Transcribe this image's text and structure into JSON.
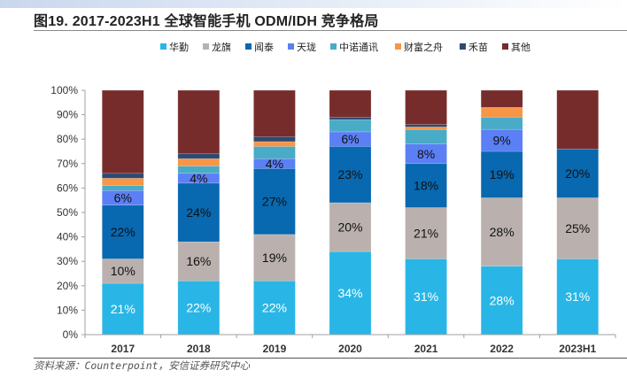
{
  "title": "图19. 2017-2023H1 全球智能手机 ODM/IDH 竞争格局",
  "source": "资料来源：Counterpoint，安信证券研究中心",
  "chart_data": {
    "type": "bar",
    "stacked": true,
    "title": "图19. 2017-2023H1 全球智能手机 ODM/IDH 竞争格局",
    "xlabel": "",
    "ylabel": "",
    "ylim": [
      0,
      100
    ],
    "yticks": [
      "0%",
      "10%",
      "20%",
      "30%",
      "40%",
      "50%",
      "60%",
      "70%",
      "80%",
      "90%",
      "100%"
    ],
    "categories": [
      "2017",
      "2018",
      "2019",
      "2020",
      "2021",
      "2022",
      "2023H1"
    ],
    "legend_position": "top",
    "series": [
      {
        "name": "华勤",
        "color": "#29b6e6",
        "values": [
          21,
          22,
          22,
          34,
          31,
          28,
          31
        ],
        "labels": [
          "21%",
          "22%",
          "22%",
          "34%",
          "31%",
          "28%",
          "31%"
        ],
        "label_color": "#ffffff"
      },
      {
        "name": "龙旗",
        "color": "#bab1ae",
        "values": [
          10,
          16,
          19,
          20,
          21,
          28,
          25
        ],
        "labels": [
          "10%",
          "16%",
          "19%",
          "20%",
          "21%",
          "28%",
          "25%"
        ],
        "label_color": "#111111"
      },
      {
        "name": "闻泰",
        "color": "#0868b0",
        "values": [
          22,
          24,
          27,
          23,
          18,
          19,
          20
        ],
        "labels": [
          "22%",
          "24%",
          "27%",
          "23%",
          "18%",
          "19%",
          "20%"
        ],
        "label_color": "#111111"
      },
      {
        "name": "天珑",
        "color": "#5b7ff5",
        "values": [
          6,
          4,
          4,
          6,
          8,
          9,
          0
        ],
        "labels": [
          "6%",
          "4%",
          "4%",
          "6%",
          "8%",
          "9%",
          ""
        ],
        "label_color": "#111111"
      },
      {
        "name": "中诺通讯",
        "color": "#4aabc6",
        "values": [
          2,
          3,
          5,
          5,
          6,
          5,
          0
        ],
        "labels": [
          "",
          "",
          "",
          "",
          "",
          "",
          ""
        ],
        "label_color": "#111111"
      },
      {
        "name": "财富之舟",
        "color": "#f79646",
        "values": [
          3,
          3,
          2,
          0,
          1,
          4,
          0
        ],
        "labels": [
          "",
          "",
          "",
          "",
          "",
          "",
          ""
        ],
        "label_color": "#111111"
      },
      {
        "name": "禾苗",
        "color": "#2e4a72",
        "values": [
          2,
          2,
          2,
          1,
          1,
          0,
          0
        ],
        "labels": [
          "",
          "",
          "",
          "",
          "",
          "",
          ""
        ],
        "label_color": "#111111"
      },
      {
        "name": "其他",
        "color": "#772c2c",
        "values": [
          34,
          26,
          19,
          11,
          14,
          7,
          24
        ],
        "labels": [
          "",
          "",
          "",
          "",
          "",
          "",
          ""
        ],
        "label_color": "#111111"
      }
    ]
  }
}
